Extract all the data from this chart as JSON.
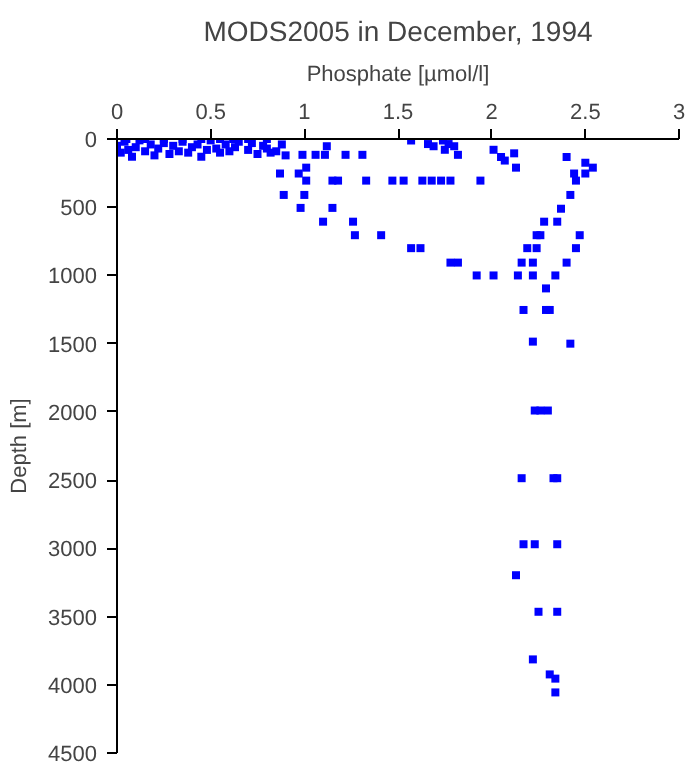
{
  "chart_data": {
    "type": "scatter",
    "title": "MODS2005 in December, 1994",
    "xlabel": "Phosphate [µmol/l]",
    "ylabel": "Depth [m]",
    "xlim": [
      0,
      3
    ],
    "xticks": [
      0,
      0.5,
      1,
      1.5,
      2,
      2.5,
      3
    ],
    "ylim": [
      4500,
      0
    ],
    "yticks": [
      0,
      500,
      1000,
      1500,
      2000,
      2500,
      3000,
      3500,
      4000,
      4500
    ],
    "marker": "square",
    "grid": false,
    "series": [
      {
        "color": "#0000ff",
        "x": [
          0.0,
          0.02,
          0.04,
          0.06,
          0.08,
          0.1,
          0.12,
          0.15,
          0.18,
          0.2,
          0.22,
          0.25,
          0.28,
          0.3,
          0.33,
          0.35,
          0.38,
          0.4,
          0.43,
          0.45,
          0.48,
          0.5,
          0.53,
          0.55,
          0.58,
          0.6,
          0.63,
          0.65,
          0.7,
          0.72,
          0.75,
          0.78,
          0.8,
          0.82,
          0.85,
          0.88,
          0.9,
          0.05,
          0.15,
          0.25,
          0.35,
          0.45,
          0.55,
          0.62,
          0.7,
          0.8,
          0.87,
          0.89,
          0.97,
          0.98,
          1.01,
          1.0,
          1.01,
          0.99,
          1.06,
          1.11,
          1.12,
          1.15,
          1.18,
          1.15,
          1.1,
          1.26,
          1.27,
          1.22,
          1.31,
          1.33,
          1.41,
          1.47,
          1.57,
          1.66,
          1.69,
          1.74,
          1.77,
          1.8,
          1.75,
          1.82,
          1.53,
          1.63,
          1.68,
          1.73,
          1.78,
          1.94,
          1.57,
          1.62,
          1.78,
          1.82,
          1.92,
          2.01,
          2.14,
          2.22,
          2.34,
          2.01,
          2.05,
          2.07,
          2.12,
          2.13,
          2.4,
          2.44,
          2.45,
          2.5,
          2.54,
          2.5,
          2.42,
          2.37,
          2.35,
          2.28,
          2.24,
          2.26,
          2.47,
          2.19,
          2.24,
          2.45,
          2.16,
          2.22,
          2.4,
          2.29,
          2.17,
          2.29,
          2.31,
          2.22,
          2.42,
          2.23,
          2.26,
          2.3,
          2.16,
          2.33,
          2.35,
          2.17,
          2.23,
          2.35,
          2.13,
          2.25,
          2.35,
          2.22,
          2.31,
          2.34,
          2.34
        ],
        "values": [
          50,
          100,
          20,
          80,
          130,
          60,
          10,
          90,
          40,
          120,
          70,
          30,
          110,
          50,
          90,
          20,
          100,
          60,
          40,
          130,
          80,
          10,
          70,
          100,
          40,
          90,
          60,
          20,
          80,
          30,
          110,
          50,
          70,
          100,
          90,
          40,
          120,
          0,
          0,
          0,
          0,
          0,
          0,
          0,
          0,
          0,
          253,
          410,
          253,
          505,
          210,
          410,
          305,
          116,
          116,
          116,
          53,
          305,
          305,
          505,
          606,
          606,
          705,
          116,
          116,
          305,
          705,
          305,
          11,
          37,
          53,
          11,
          37,
          53,
          79,
          116,
          305,
          305,
          305,
          305,
          305,
          305,
          800,
          800,
          906,
          906,
          1000,
          1000,
          1000,
          1000,
          1000,
          79,
          132,
          158,
          105,
          210,
          132,
          253,
          305,
          174,
          210,
          253,
          410,
          511,
          606,
          606,
          705,
          705,
          705,
          800,
          800,
          800,
          906,
          906,
          906,
          1095,
          1253,
          1253,
          1253,
          1485,
          1500,
          1990,
          1990,
          1990,
          2486,
          2486,
          2486,
          2970,
          2970,
          2970,
          3197,
          3465,
          3465,
          3814,
          3924,
          3955,
          4056
        ]
      }
    ]
  }
}
